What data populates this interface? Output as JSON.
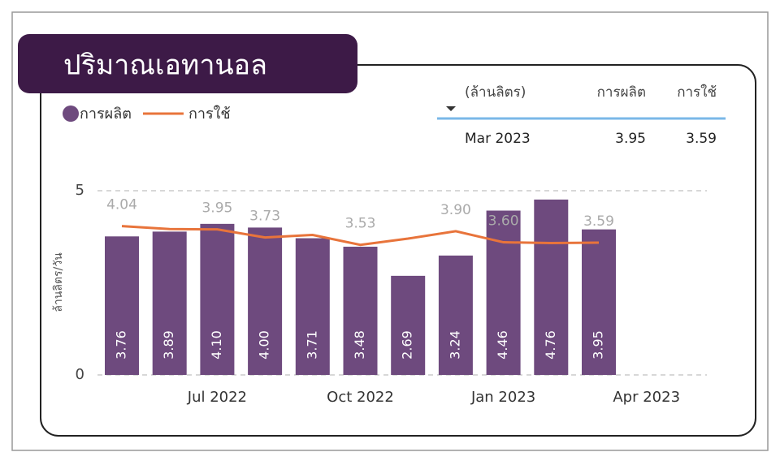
{
  "title": "ปริมาณเอทานอล",
  "table": {
    "header": [
      "(ล้านลิตร)",
      "การผลิต",
      "การใช้"
    ],
    "rows": [
      [
        "Mar 2023",
        "3.95",
        "3.59"
      ]
    ]
  },
  "chart_data": {
    "type": "bar-line",
    "y_label": "ล้านลิตร/วัน",
    "categories": [
      null,
      null,
      "Jul 2022",
      null,
      null,
      "Oct 2022",
      null,
      null,
      "Jan 2023",
      null,
      null,
      "Apr 2023"
    ],
    "series": [
      {
        "name": "การผลิต",
        "type": "bar",
        "color": "#6e4a7e",
        "values": [
          3.76,
          3.89,
          4.1,
          4.0,
          3.71,
          3.48,
          2.69,
          3.24,
          4.46,
          4.76,
          3.95,
          null
        ],
        "value_labels": [
          "3.76",
          "3.89",
          "4.10",
          "4.00",
          "3.71",
          "3.48",
          "2.69",
          "3.24",
          "4.46",
          "4.76",
          "3.95",
          null
        ]
      },
      {
        "name": "การใช้",
        "type": "line",
        "color": "#e8743b",
        "values": [
          4.04,
          3.96,
          3.95,
          3.73,
          3.8,
          3.53,
          3.7,
          3.9,
          3.6,
          3.58,
          3.59,
          null
        ],
        "value_labels": [
          "4.04",
          null,
          "3.95",
          "3.73",
          null,
          "3.53",
          null,
          "3.90",
          "3.60",
          null,
          "3.59",
          null
        ]
      }
    ],
    "ylim": [
      0,
      5
    ],
    "yticks": [
      0,
      5
    ],
    "grid": true
  }
}
